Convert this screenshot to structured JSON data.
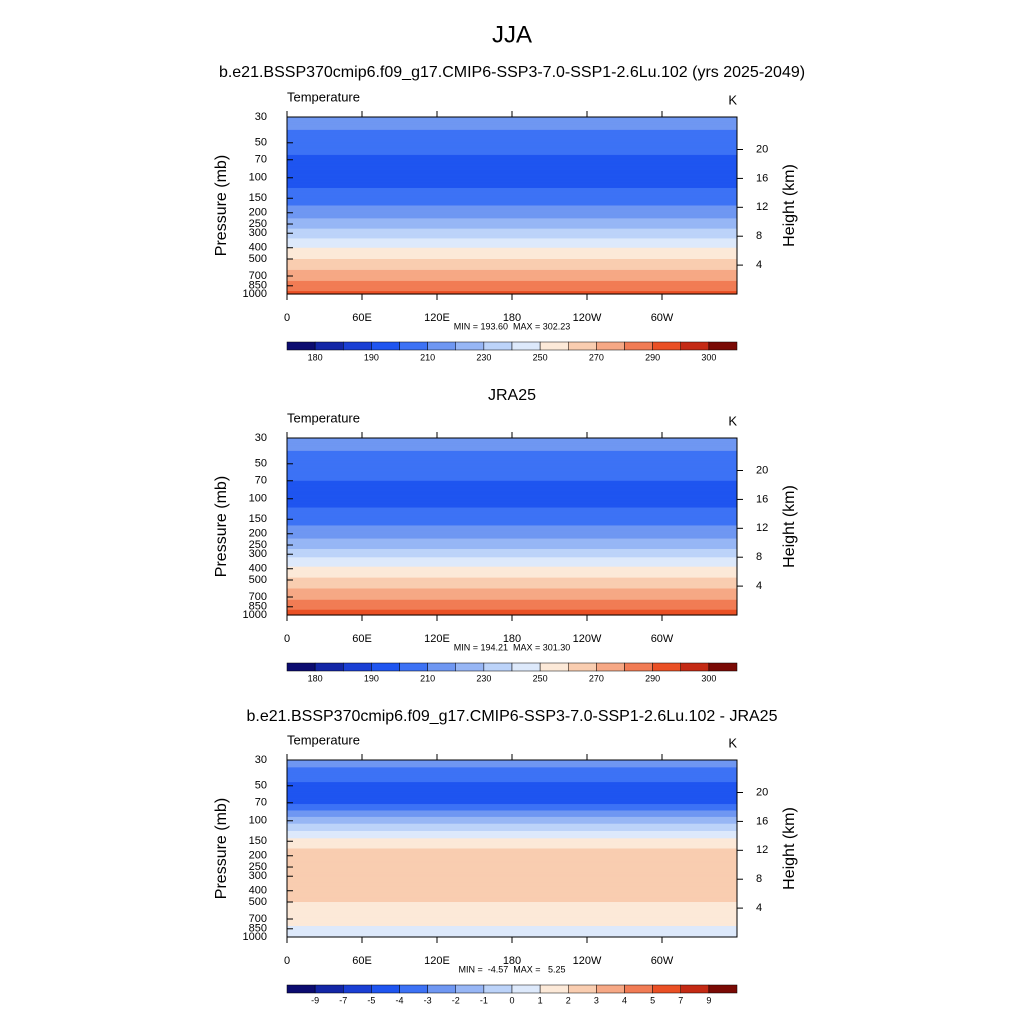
{
  "title": "JJA",
  "chart_data": [
    {
      "type": "contour",
      "title": "b.e21.BSSP370cmip6.f09_g17.CMIP6-SSP3-7.0-SSP1-2.6Lu.102 (yrs 2025-2049)",
      "left_label": "Temperature",
      "right_label": "K",
      "y_label": "Pressure (mb)",
      "y2_label": "Height (km)",
      "stats": "MIN = 193.60  MAX = 302.23",
      "log_y": true,
      "ylim": [
        1000,
        30
      ],
      "yticks": [
        30,
        50,
        70,
        100,
        150,
        200,
        250,
        300,
        400,
        500,
        700,
        850,
        1000
      ],
      "y2lim": [
        0,
        24.5
      ],
      "y2ticks": [
        4,
        8,
        12,
        16,
        20
      ],
      "xlim": [
        0,
        360
      ],
      "xticks": [
        0,
        {
          "value": 60,
          "label": "60E"
        },
        {
          "value": 120,
          "label": "120E"
        },
        180,
        {
          "value": 240,
          "label": "120W"
        },
        {
          "value": 300,
          "label": "60W"
        }
      ],
      "profile": [
        215,
        205,
        198,
        195,
        205,
        215,
        225,
        235,
        250,
        260,
        275,
        285,
        293
      ],
      "levels": [
        180,
        185,
        190,
        200,
        210,
        220,
        230,
        240,
        250,
        260,
        270,
        280,
        290,
        295,
        300
      ],
      "colorbar_ticks": [
        180,
        190,
        210,
        230,
        250,
        270,
        290,
        300
      ],
      "colors": [
        "#0c0c70",
        "#1326a6",
        "#1a3fd4",
        "#1f55f0",
        "#3d72f5",
        "#6f97f2",
        "#97b6f5",
        "#bcd3f9",
        "#dde9fb",
        "#fce9d8",
        "#f9cdb0",
        "#f6a885",
        "#f17c55",
        "#ea5025",
        "#c42a14",
        "#7a0a05"
      ]
    },
    {
      "type": "contour",
      "title": "JRA25",
      "left_label": "Temperature",
      "right_label": "K",
      "y_label": "Pressure (mb)",
      "y2_label": "Height (km)",
      "stats": "MIN = 194.21  MAX = 301.30",
      "log_y": true,
      "ylim": [
        1000,
        30
      ],
      "yticks": [
        30,
        50,
        70,
        100,
        150,
        200,
        250,
        300,
        400,
        500,
        700,
        850,
        1000
      ],
      "y2lim": [
        0,
        24.5
      ],
      "y2ticks": [
        4,
        8,
        12,
        16,
        20
      ],
      "xlim": [
        0,
        360
      ],
      "xticks": [
        0,
        {
          "value": 60,
          "label": "60E"
        },
        {
          "value": 120,
          "label": "120E"
        },
        180,
        {
          "value": 240,
          "label": "120W"
        },
        {
          "value": 300,
          "label": "60W"
        }
      ],
      "profile": [
        215,
        205,
        200,
        196,
        206,
        216,
        226,
        236,
        252,
        262,
        277,
        287,
        295
      ],
      "levels": [
        180,
        185,
        190,
        200,
        210,
        220,
        230,
        240,
        250,
        260,
        270,
        280,
        290,
        295,
        300
      ],
      "colorbar_ticks": [
        180,
        190,
        210,
        230,
        250,
        270,
        290,
        300
      ],
      "colors": [
        "#0c0c70",
        "#1326a6",
        "#1a3fd4",
        "#1f55f0",
        "#3d72f5",
        "#6f97f2",
        "#97b6f5",
        "#bcd3f9",
        "#dde9fb",
        "#fce9d8",
        "#f9cdb0",
        "#f6a885",
        "#f17c55",
        "#ea5025",
        "#c42a14",
        "#7a0a05"
      ]
    },
    {
      "type": "contour",
      "title": "b.e21.BSSP370cmip6.f09_g17.CMIP6-SSP3-7.0-SSP1-2.6Lu.102 - JRA25",
      "left_label": "Temperature",
      "right_label": "K",
      "y_label": "Pressure (mb)",
      "y2_label": "Height (km)",
      "stats": "MIN =  -4.57  MAX =   5.25",
      "log_y": true,
      "ylim": [
        1000,
        30
      ],
      "yticks": [
        30,
        50,
        70,
        100,
        150,
        200,
        250,
        300,
        400,
        500,
        700,
        850,
        1000
      ],
      "y2lim": [
        0,
        24.5
      ],
      "y2ticks": [
        4,
        8,
        12,
        16,
        20
      ],
      "xlim": [
        0,
        360
      ],
      "xticks": [
        0,
        {
          "value": 60,
          "label": "60E"
        },
        {
          "value": 120,
          "label": "120E"
        },
        180,
        {
          "value": 240,
          "label": "120W"
        },
        {
          "value": 300,
          "label": "60W"
        }
      ],
      "profile": [
        -2.5,
        -4.2,
        -4.3,
        -1.5,
        1.5,
        2.5,
        2.5,
        2.3,
        2.2,
        2,
        1.5,
        0.8,
        0.5
      ],
      "levels": [
        -9,
        -7,
        -5,
        -4,
        -3,
        -2,
        -1,
        0,
        1,
        2,
        3,
        4,
        5,
        7,
        9
      ],
      "colorbar_ticks": [
        -9,
        -7,
        -5,
        -4,
        -3,
        -2,
        -1,
        0,
        1,
        2,
        3,
        4,
        5,
        7,
        9
      ],
      "colors": [
        "#0c0c70",
        "#1326a6",
        "#1a3fd4",
        "#1f55f0",
        "#3d72f5",
        "#6f97f2",
        "#97b6f5",
        "#bcd3f9",
        "#dde9fb",
        "#fce9d8",
        "#f9cdb0",
        "#f6a885",
        "#f17c55",
        "#ea5025",
        "#c42a14",
        "#7a0a05"
      ]
    }
  ]
}
